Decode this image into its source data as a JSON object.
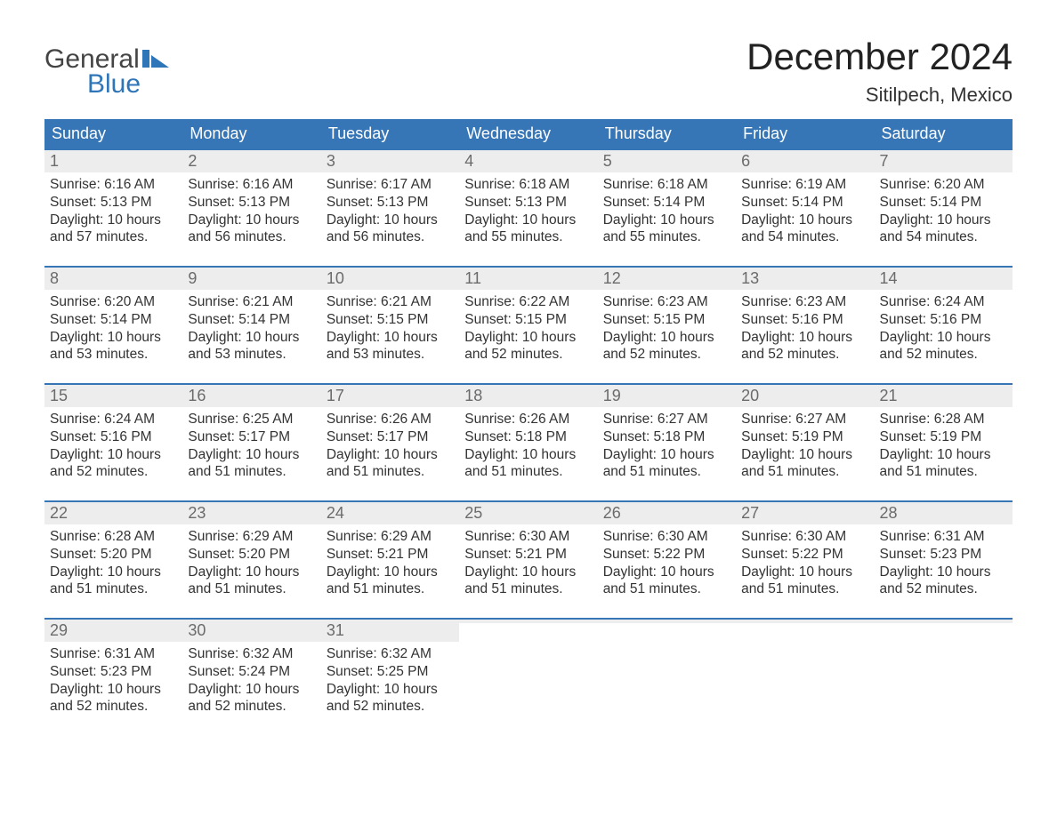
{
  "brand": {
    "part1": "General",
    "part2": "Blue",
    "flag_color": "#2f76b8",
    "text_color": "#444444"
  },
  "title": "December 2024",
  "location": "Sitilpech, Mexico",
  "colors": {
    "header_bg": "#3776b6",
    "header_text": "#ffffff",
    "week_border": "#3776b6",
    "daynum_bg": "#ededed",
    "daynum_text": "#6b6b6b",
    "body_text": "#333333",
    "page_bg": "#ffffff"
  },
  "day_names": [
    "Sunday",
    "Monday",
    "Tuesday",
    "Wednesday",
    "Thursday",
    "Friday",
    "Saturday"
  ],
  "weeks": [
    [
      {
        "n": "1",
        "sr": "Sunrise: 6:16 AM",
        "ss": "Sunset: 5:13 PM",
        "d1": "Daylight: 10 hours",
        "d2": "and 57 minutes."
      },
      {
        "n": "2",
        "sr": "Sunrise: 6:16 AM",
        "ss": "Sunset: 5:13 PM",
        "d1": "Daylight: 10 hours",
        "d2": "and 56 minutes."
      },
      {
        "n": "3",
        "sr": "Sunrise: 6:17 AM",
        "ss": "Sunset: 5:13 PM",
        "d1": "Daylight: 10 hours",
        "d2": "and 56 minutes."
      },
      {
        "n": "4",
        "sr": "Sunrise: 6:18 AM",
        "ss": "Sunset: 5:13 PM",
        "d1": "Daylight: 10 hours",
        "d2": "and 55 minutes."
      },
      {
        "n": "5",
        "sr": "Sunrise: 6:18 AM",
        "ss": "Sunset: 5:14 PM",
        "d1": "Daylight: 10 hours",
        "d2": "and 55 minutes."
      },
      {
        "n": "6",
        "sr": "Sunrise: 6:19 AM",
        "ss": "Sunset: 5:14 PM",
        "d1": "Daylight: 10 hours",
        "d2": "and 54 minutes."
      },
      {
        "n": "7",
        "sr": "Sunrise: 6:20 AM",
        "ss": "Sunset: 5:14 PM",
        "d1": "Daylight: 10 hours",
        "d2": "and 54 minutes."
      }
    ],
    [
      {
        "n": "8",
        "sr": "Sunrise: 6:20 AM",
        "ss": "Sunset: 5:14 PM",
        "d1": "Daylight: 10 hours",
        "d2": "and 53 minutes."
      },
      {
        "n": "9",
        "sr": "Sunrise: 6:21 AM",
        "ss": "Sunset: 5:14 PM",
        "d1": "Daylight: 10 hours",
        "d2": "and 53 minutes."
      },
      {
        "n": "10",
        "sr": "Sunrise: 6:21 AM",
        "ss": "Sunset: 5:15 PM",
        "d1": "Daylight: 10 hours",
        "d2": "and 53 minutes."
      },
      {
        "n": "11",
        "sr": "Sunrise: 6:22 AM",
        "ss": "Sunset: 5:15 PM",
        "d1": "Daylight: 10 hours",
        "d2": "and 52 minutes."
      },
      {
        "n": "12",
        "sr": "Sunrise: 6:23 AM",
        "ss": "Sunset: 5:15 PM",
        "d1": "Daylight: 10 hours",
        "d2": "and 52 minutes."
      },
      {
        "n": "13",
        "sr": "Sunrise: 6:23 AM",
        "ss": "Sunset: 5:16 PM",
        "d1": "Daylight: 10 hours",
        "d2": "and 52 minutes."
      },
      {
        "n": "14",
        "sr": "Sunrise: 6:24 AM",
        "ss": "Sunset: 5:16 PM",
        "d1": "Daylight: 10 hours",
        "d2": "and 52 minutes."
      }
    ],
    [
      {
        "n": "15",
        "sr": "Sunrise: 6:24 AM",
        "ss": "Sunset: 5:16 PM",
        "d1": "Daylight: 10 hours",
        "d2": "and 52 minutes."
      },
      {
        "n": "16",
        "sr": "Sunrise: 6:25 AM",
        "ss": "Sunset: 5:17 PM",
        "d1": "Daylight: 10 hours",
        "d2": "and 51 minutes."
      },
      {
        "n": "17",
        "sr": "Sunrise: 6:26 AM",
        "ss": "Sunset: 5:17 PM",
        "d1": "Daylight: 10 hours",
        "d2": "and 51 minutes."
      },
      {
        "n": "18",
        "sr": "Sunrise: 6:26 AM",
        "ss": "Sunset: 5:18 PM",
        "d1": "Daylight: 10 hours",
        "d2": "and 51 minutes."
      },
      {
        "n": "19",
        "sr": "Sunrise: 6:27 AM",
        "ss": "Sunset: 5:18 PM",
        "d1": "Daylight: 10 hours",
        "d2": "and 51 minutes."
      },
      {
        "n": "20",
        "sr": "Sunrise: 6:27 AM",
        "ss": "Sunset: 5:19 PM",
        "d1": "Daylight: 10 hours",
        "d2": "and 51 minutes."
      },
      {
        "n": "21",
        "sr": "Sunrise: 6:28 AM",
        "ss": "Sunset: 5:19 PM",
        "d1": "Daylight: 10 hours",
        "d2": "and 51 minutes."
      }
    ],
    [
      {
        "n": "22",
        "sr": "Sunrise: 6:28 AM",
        "ss": "Sunset: 5:20 PM",
        "d1": "Daylight: 10 hours",
        "d2": "and 51 minutes."
      },
      {
        "n": "23",
        "sr": "Sunrise: 6:29 AM",
        "ss": "Sunset: 5:20 PM",
        "d1": "Daylight: 10 hours",
        "d2": "and 51 minutes."
      },
      {
        "n": "24",
        "sr": "Sunrise: 6:29 AM",
        "ss": "Sunset: 5:21 PM",
        "d1": "Daylight: 10 hours",
        "d2": "and 51 minutes."
      },
      {
        "n": "25",
        "sr": "Sunrise: 6:30 AM",
        "ss": "Sunset: 5:21 PM",
        "d1": "Daylight: 10 hours",
        "d2": "and 51 minutes."
      },
      {
        "n": "26",
        "sr": "Sunrise: 6:30 AM",
        "ss": "Sunset: 5:22 PM",
        "d1": "Daylight: 10 hours",
        "d2": "and 51 minutes."
      },
      {
        "n": "27",
        "sr": "Sunrise: 6:30 AM",
        "ss": "Sunset: 5:22 PM",
        "d1": "Daylight: 10 hours",
        "d2": "and 51 minutes."
      },
      {
        "n": "28",
        "sr": "Sunrise: 6:31 AM",
        "ss": "Sunset: 5:23 PM",
        "d1": "Daylight: 10 hours",
        "d2": "and 52 minutes."
      }
    ],
    [
      {
        "n": "29",
        "sr": "Sunrise: 6:31 AM",
        "ss": "Sunset: 5:23 PM",
        "d1": "Daylight: 10 hours",
        "d2": "and 52 minutes."
      },
      {
        "n": "30",
        "sr": "Sunrise: 6:32 AM",
        "ss": "Sunset: 5:24 PM",
        "d1": "Daylight: 10 hours",
        "d2": "and 52 minutes."
      },
      {
        "n": "31",
        "sr": "Sunrise: 6:32 AM",
        "ss": "Sunset: 5:25 PM",
        "d1": "Daylight: 10 hours",
        "d2": "and 52 minutes."
      },
      {
        "empty": true
      },
      {
        "empty": true
      },
      {
        "empty": true
      },
      {
        "empty": true
      }
    ]
  ]
}
